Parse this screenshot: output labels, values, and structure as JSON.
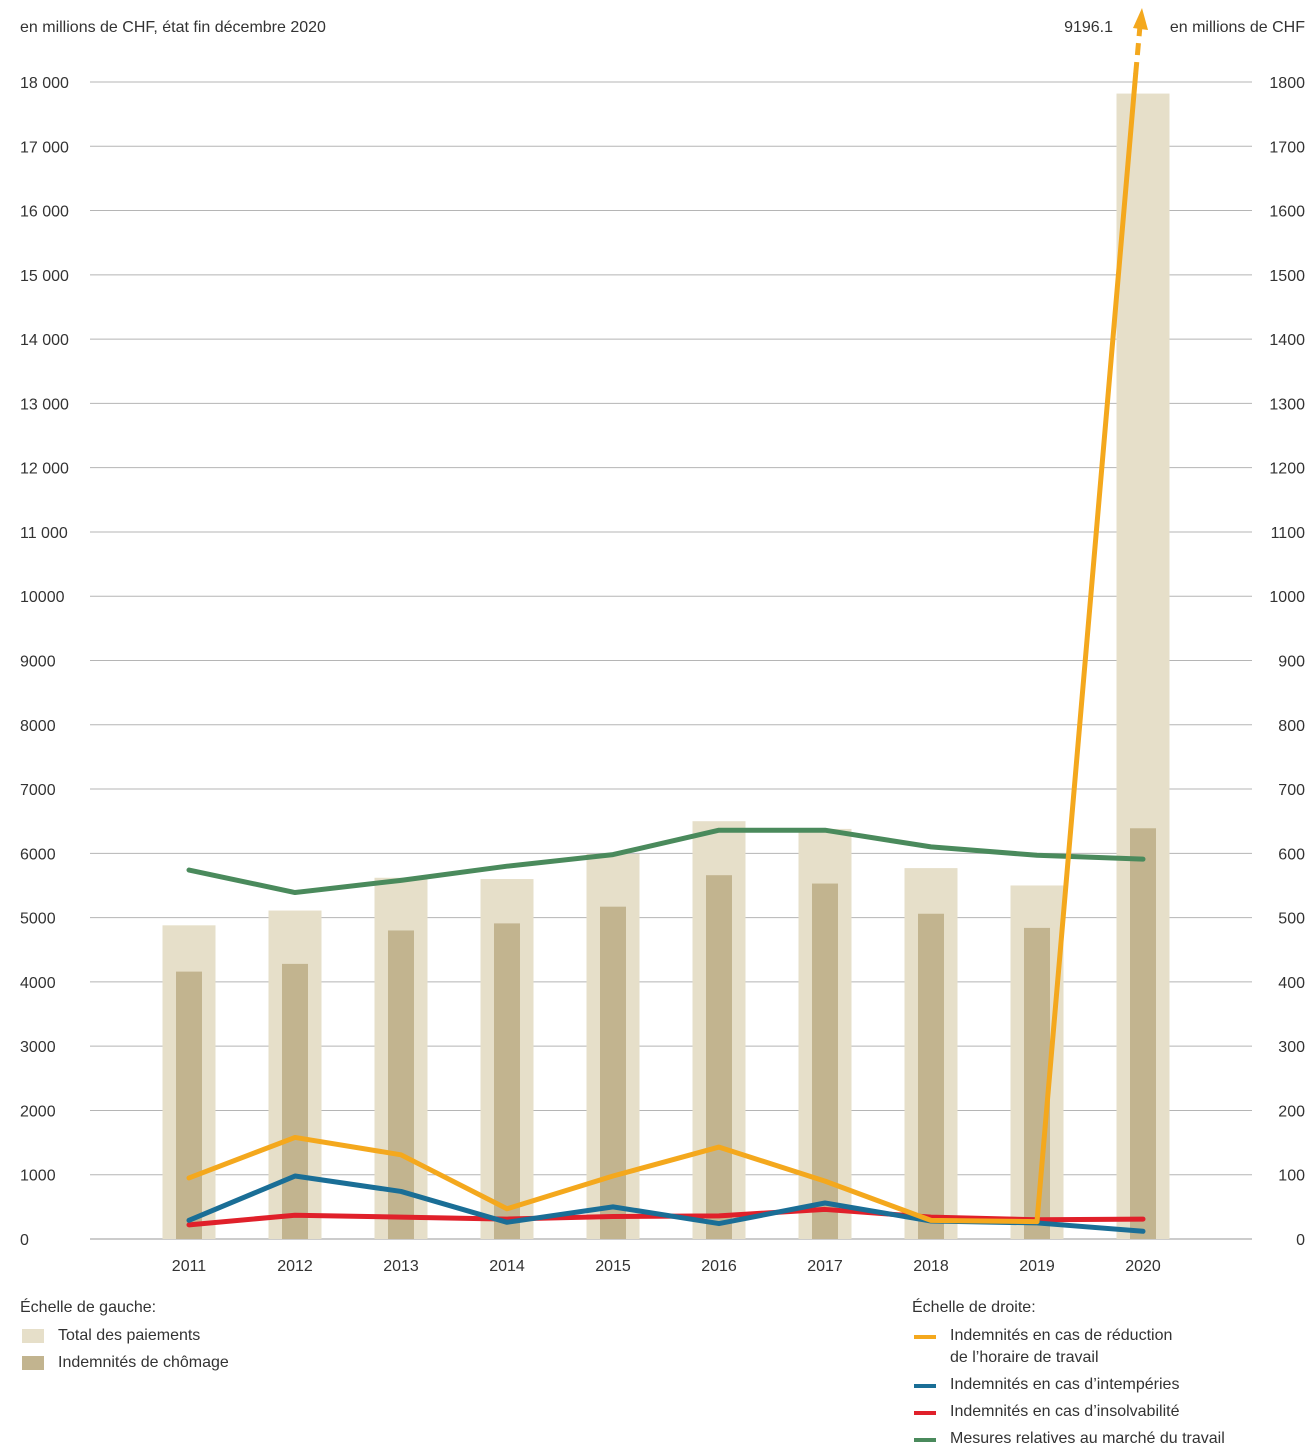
{
  "chart_data": {
    "type": "bar",
    "left_axis_unit": "en millions de CHF, état fin décembre 2020",
    "right_axis_unit": "en millions de CHF",
    "left_ylim": [
      0,
      18000
    ],
    "right_ylim": [
      0,
      1800
    ],
    "left_ticks": [
      "0",
      "1000",
      "2000",
      "3000",
      "4000",
      "5000",
      "6000",
      "7000",
      "8000",
      "9000",
      "10000",
      "11 000",
      "12 000",
      "13 000",
      "14 000",
      "15 000",
      "16 000",
      "17 000",
      "18 000"
    ],
    "right_ticks": [
      "0",
      "100",
      "200",
      "300",
      "400",
      "500",
      "600",
      "700",
      "800",
      "900",
      "1000",
      "1100",
      "1200",
      "1300",
      "1400",
      "1500",
      "1600",
      "1700",
      "1800"
    ],
    "categories": [
      "2011",
      "2012",
      "2013",
      "2014",
      "2015",
      "2016",
      "2017",
      "2018",
      "2019",
      "2020"
    ],
    "overflow_label": "9196.1",
    "legend_left_title": "Échelle de gauche:",
    "legend_right_title": "Échelle de droite:",
    "bar_series": [
      {
        "name": "Total des paiements",
        "color": "#e6dfc9",
        "values": [
          4880,
          5110,
          5620,
          5600,
          5990,
          6500,
          6380,
          5770,
          5500,
          17820
        ]
      },
      {
        "name": "Indemnités de chômage",
        "color": "#c2b48f",
        "values": [
          4160,
          4280,
          4800,
          4910,
          5170,
          5660,
          5530,
          5060,
          4840,
          6390
        ]
      }
    ],
    "line_series": [
      {
        "name": "Indemnités en cas de réduction\nde l’horaire de travail",
        "color": "#f4a81d",
        "values": [
          95,
          158,
          131,
          47,
          98,
          143,
          90,
          29,
          27,
          9196.1
        ]
      },
      {
        "name": "Indemnités en cas d’intempéries",
        "color": "#1a6e96",
        "values": [
          29,
          98,
          74,
          26,
          50,
          24,
          56,
          28,
          25,
          12
        ]
      },
      {
        "name": "Indemnités en cas d’insolvabilité",
        "color": "#e0202a",
        "values": [
          22,
          37,
          34,
          31,
          35,
          36,
          46,
          34,
          30,
          31
        ]
      },
      {
        "name": "Mesures relatives au marché du travail",
        "color": "#4a8a5c",
        "values": [
          574,
          539,
          558,
          580,
          598,
          636,
          636,
          610,
          597,
          591
        ]
      }
    ]
  }
}
